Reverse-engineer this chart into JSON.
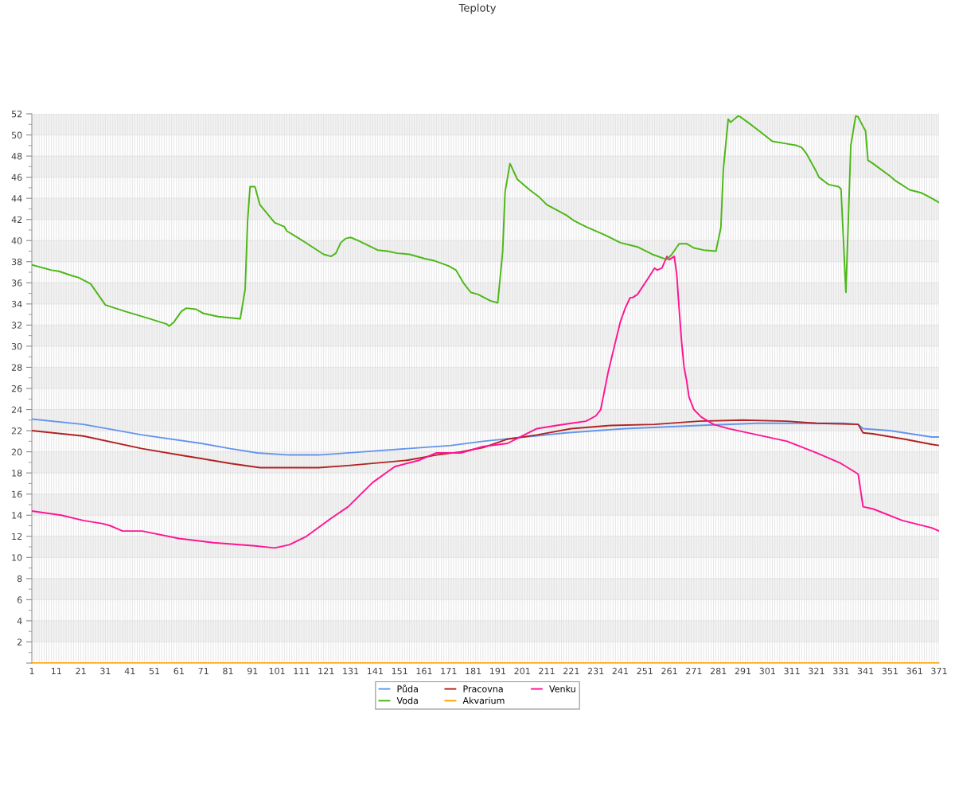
{
  "chart_data": {
    "type": "line",
    "title": "Teploty",
    "xlim": [
      1,
      371
    ],
    "xticks": [
      1,
      {
        "value": 2,
        "label": null
      },
      {
        "value": 3,
        "label": null
      },
      {
        "value": 4,
        "label": null
      },
      {
        "value": 5,
        "label": null
      },
      {
        "value": 6,
        "label": null
      },
      {
        "value": 7,
        "label": null
      },
      {
        "value": 8,
        "label": null
      },
      {
        "value": 9,
        "label": null
      },
      {
        "value": 10,
        "label": null
      },
      11,
      {
        "value": 12,
        "label": null
      },
      {
        "value": 13,
        "label": null
      },
      {
        "value": 14,
        "label": null
      },
      {
        "value": 15,
        "label": null
      },
      {
        "value": 16,
        "label": null
      },
      {
        "value": 17,
        "label": null
      },
      {
        "value": 18,
        "label": null
      },
      {
        "value": 19,
        "label": null
      },
      {
        "value": 20,
        "label": null
      },
      21,
      {
        "value": 22,
        "label": null
      },
      {
        "value": 23,
        "label": null
      },
      {
        "value": 24,
        "label": null
      },
      {
        "value": 25,
        "label": null
      },
      {
        "value": 26,
        "label": null
      },
      {
        "value": 27,
        "label": null
      },
      {
        "value": 28,
        "label": null
      },
      {
        "value": 29,
        "label": null
      },
      {
        "value": 30,
        "label": null
      },
      31,
      {
        "value": 32,
        "label": null
      },
      {
        "value": 33,
        "label": null
      },
      {
        "value": 34,
        "label": null
      },
      {
        "value": 35,
        "label": null
      },
      {
        "value": 36,
        "label": null
      },
      {
        "value": 37,
        "label": null
      },
      {
        "value": 38,
        "label": null
      },
      {
        "value": 39,
        "label": null
      },
      {
        "value": 40,
        "label": null
      },
      41,
      {
        "value": 42,
        "label": null
      },
      {
        "value": 43,
        "label": null
      },
      {
        "value": 44,
        "label": null
      },
      {
        "value": 45,
        "label": null
      },
      {
        "value": 46,
        "label": null
      },
      {
        "value": 47,
        "label": null
      },
      {
        "value": 48,
        "label": null
      },
      {
        "value": 49,
        "label": null
      },
      {
        "value": 50,
        "label": null
      },
      51,
      {
        "value": 52,
        "label": null
      },
      {
        "value": 53,
        "label": null
      },
      {
        "value": 54,
        "label": null
      },
      {
        "value": 55,
        "label": null
      },
      {
        "value": 56,
        "label": null
      },
      {
        "value": 57,
        "label": null
      },
      {
        "value": 58,
        "label": null
      },
      {
        "value": 59,
        "label": null
      },
      {
        "value": 60,
        "label": null
      },
      61,
      {
        "value": 62,
        "label": null
      },
      {
        "value": 63,
        "label": null
      },
      {
        "value": 64,
        "label": null
      },
      {
        "value": 65,
        "label": null
      },
      {
        "value": 66,
        "label": null
      },
      {
        "value": 67,
        "label": null
      },
      {
        "value": 68,
        "label": null
      },
      {
        "value": 69,
        "label": null
      },
      {
        "value": 70,
        "label": null
      },
      71,
      {
        "value": 72,
        "label": null
      },
      {
        "value": 73,
        "label": null
      },
      {
        "value": 74,
        "label": null
      },
      {
        "value": 75,
        "label": null
      },
      {
        "value": 76,
        "label": null
      },
      {
        "value": 77,
        "label": null
      },
      {
        "value": 78,
        "label": null
      },
      {
        "value": 79,
        "label": null
      },
      {
        "value": 80,
        "label": null
      },
      81,
      {
        "value": 82,
        "label": null
      },
      {
        "value": 83,
        "label": null
      },
      {
        "value": 84,
        "label": null
      },
      {
        "value": 85,
        "label": null
      },
      {
        "value": 86,
        "label": null
      },
      {
        "value": 87,
        "label": null
      },
      {
        "value": 88,
        "label": null
      },
      {
        "value": 89,
        "label": null
      },
      {
        "value": 90,
        "label": null
      },
      91,
      {
        "value": 92,
        "label": null
      },
      {
        "value": 93,
        "label": null
      },
      {
        "value": 94,
        "label": null
      },
      {
        "value": 95,
        "label": null
      },
      {
        "value": 96,
        "label": null
      },
      {
        "value": 97,
        "label": null
      },
      {
        "value": 98,
        "label": null
      },
      {
        "value": 99,
        "label": null
      },
      {
        "value": 100,
        "label": null
      },
      101,
      {
        "value": 102,
        "label": null
      },
      {
        "value": 103,
        "label": null
      },
      {
        "value": 104,
        "label": null
      },
      {
        "value": 105,
        "label": null
      },
      {
        "value": 106,
        "label": null
      },
      {
        "value": 107,
        "label": null
      },
      {
        "value": 108,
        "label": null
      },
      {
        "value": 109,
        "label": null
      },
      {
        "value": 110,
        "label": null
      },
      111,
      {
        "value": 112,
        "label": null
      },
      {
        "value": 113,
        "label": null
      },
      {
        "value": 114,
        "label": null
      },
      {
        "value": 115,
        "label": null
      },
      {
        "value": 116,
        "label": null
      },
      {
        "value": 117,
        "label": null
      },
      {
        "value": 118,
        "label": null
      },
      {
        "value": 119,
        "label": null
      },
      {
        "value": 120,
        "label": null
      },
      121,
      {
        "value": 122,
        "label": null
      },
      {
        "value": 123,
        "label": null
      },
      {
        "value": 124,
        "label": null
      },
      {
        "value": 125,
        "label": null
      },
      {
        "value": 126,
        "label": null
      },
      {
        "value": 127,
        "label": null
      },
      {
        "value": 128,
        "label": null
      },
      {
        "value": 129,
        "label": null
      },
      {
        "value": 130,
        "label": null
      },
      131,
      {
        "value": 132,
        "label": null
      },
      {
        "value": 133,
        "label": null
      },
      {
        "value": 134,
        "label": null
      },
      {
        "value": 135,
        "label": null
      },
      {
        "value": 136,
        "label": null
      },
      {
        "value": 137,
        "label": null
      },
      {
        "value": 138,
        "label": null
      },
      {
        "value": 139,
        "label": null
      },
      {
        "value": 140,
        "label": null
      },
      141,
      {
        "value": 142,
        "label": null
      },
      {
        "value": 143,
        "label": null
      },
      {
        "value": 144,
        "label": null
      },
      {
        "value": 145,
        "label": null
      },
      {
        "value": 146,
        "label": null
      },
      {
        "value": 147,
        "label": null
      },
      {
        "value": 148,
        "label": null
      },
      {
        "value": 149,
        "label": null
      },
      {
        "value": 150,
        "label": null
      },
      151,
      {
        "value": 152,
        "label": null
      },
      {
        "value": 153,
        "label": null
      },
      {
        "value": 154,
        "label": null
      },
      {
        "value": 155,
        "label": null
      },
      {
        "value": 156,
        "label": null
      },
      {
        "value": 157,
        "label": null
      },
      {
        "value": 158,
        "label": null
      },
      {
        "value": 159,
        "label": null
      },
      {
        "value": 160,
        "label": null
      },
      161,
      {
        "value": 162,
        "label": null
      },
      {
        "value": 163,
        "label": null
      },
      {
        "value": 164,
        "label": null
      },
      {
        "value": 165,
        "label": null
      },
      {
        "value": 166,
        "label": null
      },
      {
        "value": 167,
        "label": null
      },
      {
        "value": 168,
        "label": null
      },
      {
        "value": 169,
        "label": null
      },
      {
        "value": 170,
        "label": null
      },
      171,
      {
        "value": 172,
        "label": null
      },
      {
        "value": 173,
        "label": null
      },
      {
        "value": 174,
        "label": null
      },
      {
        "value": 175,
        "label": null
      },
      {
        "value": 176,
        "label": null
      },
      {
        "value": 177,
        "label": null
      },
      {
        "value": 178,
        "label": null
      },
      {
        "value": 179,
        "label": null
      },
      {
        "value": 180,
        "label": null
      },
      181,
      {
        "value": 182,
        "label": null
      },
      {
        "value": 183,
        "label": null
      },
      {
        "value": 184,
        "label": null
      },
      {
        "value": 185,
        "label": null
      },
      {
        "value": 186,
        "label": null
      },
      {
        "value": 187,
        "label": null
      },
      {
        "value": 188,
        "label": null
      },
      {
        "value": 189,
        "label": null
      },
      {
        "value": 190,
        "label": null
      },
      191,
      {
        "value": 192,
        "label": null
      },
      {
        "value": 193,
        "label": null
      },
      {
        "value": 194,
        "label": null
      },
      {
        "value": 195,
        "label": null
      },
      {
        "value": 196,
        "label": null
      },
      {
        "value": 197,
        "label": null
      },
      {
        "value": 198,
        "label": null
      },
      {
        "value": 199,
        "label": null
      },
      {
        "value": 200,
        "label": null
      },
      201,
      {
        "value": 202,
        "label": null
      },
      {
        "value": 203,
        "label": null
      },
      {
        "value": 204,
        "label": null
      },
      {
        "value": 205,
        "label": null
      },
      {
        "value": 206,
        "label": null
      },
      {
        "value": 207,
        "label": null
      },
      {
        "value": 208,
        "label": null
      },
      {
        "value": 209,
        "label": null
      },
      {
        "value": 210,
        "label": null
      },
      211,
      {
        "value": 212,
        "label": null
      },
      {
        "value": 213,
        "label": null
      },
      {
        "value": 214,
        "label": null
      },
      {
        "value": 215,
        "label": null
      },
      {
        "value": 216,
        "label": null
      },
      {
        "value": 217,
        "label": null
      },
      {
        "value": 218,
        "label": null
      },
      {
        "value": 219,
        "label": null
      },
      {
        "value": 220,
        "label": null
      },
      221,
      {
        "value": 222,
        "label": null
      },
      {
        "value": 223,
        "label": null
      },
      {
        "value": 224,
        "label": null
      },
      {
        "value": 225,
        "label": null
      },
      {
        "value": 226,
        "label": null
      },
      {
        "value": 227,
        "label": null
      },
      {
        "value": 228,
        "label": null
      },
      {
        "value": 229,
        "label": null
      },
      {
        "value": 230,
        "label": null
      },
      231,
      {
        "value": 232,
        "label": null
      },
      {
        "value": 233,
        "label": null
      },
      {
        "value": 234,
        "label": null
      },
      {
        "value": 235,
        "label": null
      },
      {
        "value": 236,
        "label": null
      },
      {
        "value": 237,
        "label": null
      },
      {
        "value": 238,
        "label": null
      },
      {
        "value": 239,
        "label": null
      },
      {
        "value": 240,
        "label": null
      },
      241,
      {
        "value": 242,
        "label": null
      },
      {
        "value": 243,
        "label": null
      },
      {
        "value": 244,
        "label": null
      },
      {
        "value": 245,
        "label": null
      },
      {
        "value": 246,
        "label": null
      },
      {
        "value": 247,
        "label": null
      },
      {
        "value": 248,
        "label": null
      },
      {
        "value": 249,
        "label": null
      },
      {
        "value": 250,
        "label": null
      },
      251,
      {
        "value": 252,
        "label": null
      },
      {
        "value": 253,
        "label": null
      },
      {
        "value": 254,
        "label": null
      },
      {
        "value": 255,
        "label": null
      },
      {
        "value": 256,
        "label": null
      },
      {
        "value": 257,
        "label": null
      },
      {
        "value": 258,
        "label": null
      },
      {
        "value": 259,
        "label": null
      },
      {
        "value": 260,
        "label": null
      },
      261,
      {
        "value": 262,
        "label": null
      },
      {
        "value": 263,
        "label": null
      },
      {
        "value": 264,
        "label": null
      },
      {
        "value": 265,
        "label": null
      },
      {
        "value": 266,
        "label": null
      },
      {
        "value": 267,
        "label": null
      },
      {
        "value": 268,
        "label": null
      },
      {
        "value": 269,
        "label": null
      },
      {
        "value": 270,
        "label": null
      },
      271,
      {
        "value": 272,
        "label": null
      },
      {
        "value": 273,
        "label": null
      },
      {
        "value": 274,
        "label": null
      },
      {
        "value": 275,
        "label": null
      },
      {
        "value": 276,
        "label": null
      },
      {
        "value": 277,
        "label": null
      },
      {
        "value": 278,
        "label": null
      },
      {
        "value": 279,
        "label": null
      },
      {
        "value": 280,
        "label": null
      },
      281,
      {
        "value": 282,
        "label": null
      },
      {
        "value": 283,
        "label": null
      },
      {
        "value": 284,
        "label": null
      },
      {
        "value": 285,
        "label": null
      },
      {
        "value": 286,
        "label": null
      },
      {
        "value": 287,
        "label": null
      },
      {
        "value": 288,
        "label": null
      },
      {
        "value": 289,
        "label": null
      },
      {
        "value": 290,
        "label": null
      },
      291,
      {
        "value": 292,
        "label": null
      },
      {
        "value": 293,
        "label": null
      },
      {
        "value": 294,
        "label": null
      },
      {
        "value": 295,
        "label": null
      },
      {
        "value": 296,
        "label": null
      },
      {
        "value": 297,
        "label": null
      },
      {
        "value": 298,
        "label": null
      },
      {
        "value": 299,
        "label": null
      },
      {
        "value": 300,
        "label": null
      },
      301,
      {
        "value": 302,
        "label": null
      },
      {
        "value": 303,
        "label": null
      },
      {
        "value": 304,
        "label": null
      },
      {
        "value": 305,
        "label": null
      },
      {
        "value": 306,
        "label": null
      },
      {
        "value": 307,
        "label": null
      },
      {
        "value": 308,
        "label": null
      },
      {
        "value": 309,
        "label": null
      },
      {
        "value": 310,
        "label": null
      },
      311,
      {
        "value": 312,
        "label": null
      },
      {
        "value": 313,
        "label": null
      },
      {
        "value": 314,
        "label": null
      },
      {
        "value": 315,
        "label": null
      },
      {
        "value": 316,
        "label": null
      },
      {
        "value": 317,
        "label": null
      },
      {
        "value": 318,
        "label": null
      },
      {
        "value": 319,
        "label": null
      },
      {
        "value": 320,
        "label": null
      },
      321,
      {
        "value": 322,
        "label": null
      },
      {
        "value": 323,
        "label": null
      },
      {
        "value": 324,
        "label": null
      },
      {
        "value": 325,
        "label": null
      },
      {
        "value": 326,
        "label": null
      },
      {
        "value": 327,
        "label": null
      },
      {
        "value": 328,
        "label": null
      },
      {
        "value": 329,
        "label": null
      },
      {
        "value": 330,
        "label": null
      },
      331,
      {
        "value": 332,
        "label": null
      },
      {
        "value": 333,
        "label": null
      },
      {
        "value": 334,
        "label": null
      },
      {
        "value": 335,
        "label": null
      },
      {
        "value": 336,
        "label": null
      },
      {
        "value": 337,
        "label": null
      },
      {
        "value": 338,
        "label": null
      },
      {
        "value": 339,
        "label": null
      },
      {
        "value": 340,
        "label": null
      },
      341,
      {
        "value": 342,
        "label": null
      },
      {
        "value": 343,
        "label": null
      },
      {
        "value": 344,
        "label": null
      },
      {
        "value": 345,
        "label": null
      },
      {
        "value": 346,
        "label": null
      },
      {
        "value": 347,
        "label": null
      },
      {
        "value": 348,
        "label": null
      },
      {
        "value": 349,
        "label": null
      },
      {
        "value": 350,
        "label": null
      },
      351,
      {
        "value": 352,
        "label": null
      },
      {
        "value": 353,
        "label": null
      },
      {
        "value": 354,
        "label": null
      },
      {
        "value": 355,
        "label": null
      },
      {
        "value": 356,
        "label": null
      },
      {
        "value": 357,
        "label": null
      },
      {
        "value": 358,
        "label": null
      },
      {
        "value": 359,
        "label": null
      },
      {
        "value": 360,
        "label": null
      },
      361,
      {
        "value": 362,
        "label": null
      },
      {
        "value": 363,
        "label": null
      },
      {
        "value": 364,
        "label": null
      },
      {
        "value": 365,
        "label": null
      },
      {
        "value": 366,
        "label": null
      },
      {
        "value": 367,
        "label": null
      },
      {
        "value": 368,
        "label": null
      },
      {
        "value": 369,
        "label": null
      },
      {
        "value": 370,
        "label": null
      },
      371
    ],
    "ylim": [
      0,
      52
    ],
    "yticks": [
      {
        "value": 0,
        "label": null
      },
      2,
      4,
      6,
      8,
      10,
      12,
      14,
      16,
      18,
      20,
      22,
      24,
      26,
      28,
      30,
      32,
      34,
      36,
      38,
      40,
      42,
      44,
      46,
      48,
      50,
      52
    ],
    "grid": true,
    "legend": "bottom",
    "bands": [
      {
        "axis": "y",
        "from": 2,
        "to": 4,
        "color": "#f2f2f2"
      },
      {
        "axis": "y",
        "from": 6,
        "to": 8,
        "color": "#f2f2f2"
      },
      {
        "axis": "y",
        "from": 10,
        "to": 12,
        "color": "#f2f2f2"
      },
      {
        "axis": "y",
        "from": 14,
        "to": 16,
        "color": "#f2f2f2"
      },
      {
        "axis": "y",
        "from": 18,
        "to": 20,
        "color": "#f2f2f2"
      },
      {
        "axis": "y",
        "from": 22,
        "to": 24,
        "color": "#f2f2f2"
      },
      {
        "axis": "y",
        "from": 26,
        "to": 28,
        "color": "#f2f2f2"
      },
      {
        "axis": "y",
        "from": 30,
        "to": 32,
        "color": "#f2f2f2"
      },
      {
        "axis": "y",
        "from": 34,
        "to": 36,
        "color": "#f2f2f2"
      },
      {
        "axis": "y",
        "from": 38,
        "to": 40,
        "color": "#f2f2f2"
      },
      {
        "axis": "y",
        "from": 42,
        "to": 44,
        "color": "#f2f2f2"
      },
      {
        "axis": "y",
        "from": 46,
        "to": 48,
        "color": "#f2f2f2"
      },
      {
        "axis": "y",
        "from": 50,
        "to": 52,
        "color": "#f2f2f2"
      }
    ],
    "series": [
      {
        "name": "Půda",
        "color": "#6495ed",
        "x": [
          1,
          22,
          46,
          70,
          82,
          93,
          106,
          118,
          136,
          154,
          172,
          185,
          219,
          243,
          273,
          297,
          332,
          338,
          340,
          351,
          368,
          371
        ],
        "values": [
          23.1,
          22.6,
          21.6,
          20.8,
          20.3,
          19.9,
          19.7,
          19.7,
          20.0,
          20.3,
          20.6,
          21.0,
          21.8,
          22.2,
          22.5,
          22.7,
          22.7,
          22.6,
          22.2,
          22.0,
          21.4,
          21.4
        ]
      },
      {
        "name": "Pracovna",
        "color": "#b22222",
        "x": [
          1,
          22,
          46,
          64,
          82,
          94,
          118,
          130,
          154,
          166,
          176,
          185,
          195,
          207,
          221,
          237,
          255,
          273,
          291,
          309,
          321,
          338,
          340,
          344,
          357,
          368,
          371
        ],
        "values": [
          22.0,
          21.5,
          20.3,
          19.6,
          18.9,
          18.5,
          18.5,
          18.7,
          19.2,
          19.7,
          20.0,
          20.4,
          21.2,
          21.6,
          22.2,
          22.5,
          22.6,
          22.9,
          23.0,
          22.9,
          22.7,
          22.6,
          21.8,
          21.7,
          21.2,
          20.7,
          20.6
        ]
      },
      {
        "name": "Venku",
        "color": "#ff1493",
        "x": [
          1,
          13,
          22,
          30,
          33,
          35,
          38,
          46,
          61,
          75,
          92,
          100,
          106,
          113,
          123,
          130,
          140,
          149,
          159,
          166,
          176,
          185,
          195,
          201,
          207,
          215,
          221,
          227,
          231,
          233,
          236,
          239,
          241,
          243,
          245,
          246,
          248,
          252,
          255,
          256,
          258,
          260,
          261,
          263,
          264,
          265,
          266,
          267,
          268,
          269,
          271,
          274,
          279,
          285,
          297,
          309,
          321,
          331,
          338,
          340,
          344,
          356,
          368,
          371
        ],
        "values": [
          14.4,
          14.0,
          13.5,
          13.2,
          13.0,
          12.8,
          12.5,
          12.5,
          11.8,
          11.4,
          11.1,
          10.9,
          11.2,
          12.0,
          13.7,
          14.8,
          17.1,
          18.6,
          19.2,
          19.9,
          19.9,
          20.5,
          20.8,
          21.5,
          22.2,
          22.5,
          22.7,
          22.9,
          23.4,
          24.0,
          27.5,
          30.4,
          32.3,
          33.6,
          34.6,
          34.6,
          34.9,
          36.3,
          37.4,
          37.2,
          37.4,
          38.5,
          38.2,
          38.5,
          36.8,
          33.5,
          30.4,
          28.0,
          26.8,
          25.2,
          24.0,
          23.3,
          22.6,
          22.2,
          21.6,
          21.0,
          19.9,
          18.9,
          17.9,
          14.8,
          14.6,
          13.5,
          12.8,
          12.5
        ]
      },
      {
        "name": "Voda",
        "color": "#4cb716",
        "x": [
          1,
          9,
          12,
          17,
          20,
          25,
          28,
          31,
          39,
          49,
          56,
          57,
          59,
          62,
          64,
          68,
          71,
          77,
          86,
          88,
          89,
          90,
          92,
          94,
          100,
          104,
          105,
          110,
          112,
          118,
          120,
          123,
          125,
          127,
          129,
          131,
          134,
          142,
          146,
          150,
          155,
          161,
          165,
          171,
          174,
          177,
          180,
          183,
          188,
          191,
          193,
          194,
          196,
          199,
          204,
          208,
          211,
          219,
          222,
          227,
          235,
          241,
          248,
          254,
          260,
          262,
          265,
          268,
          271,
          275,
          280,
          282,
          283,
          285,
          286,
          289,
          290,
          293,
          297,
          303,
          308,
          313,
          315,
          317,
          321,
          322,
          326,
          330,
          331,
          333,
          335,
          337,
          338,
          340,
          341,
          342,
          344,
          351,
          353,
          359,
          364,
          368,
          371
        ],
        "values": [
          37.7,
          37.2,
          37.1,
          36.7,
          36.5,
          35.9,
          34.9,
          33.9,
          33.3,
          32.6,
          32.1,
          31.9,
          32.3,
          33.3,
          33.6,
          33.5,
          33.1,
          32.8,
          32.6,
          35.4,
          41.9,
          45.1,
          45.1,
          43.4,
          41.7,
          41.3,
          40.9,
          40.2,
          39.9,
          39.0,
          38.7,
          38.5,
          38.8,
          39.8,
          40.2,
          40.3,
          40.0,
          39.1,
          39.0,
          38.8,
          38.7,
          38.3,
          38.1,
          37.6,
          37.2,
          36.0,
          35.1,
          34.9,
          34.3,
          34.1,
          38.9,
          44.6,
          47.3,
          45.8,
          44.8,
          44.1,
          43.4,
          42.4,
          41.9,
          41.3,
          40.5,
          39.8,
          39.4,
          38.7,
          38.2,
          38.7,
          39.7,
          39.7,
          39.3,
          39.1,
          39.0,
          41.2,
          46.7,
          51.5,
          51.2,
          51.8,
          51.7,
          51.2,
          50.5,
          49.4,
          49.2,
          49.0,
          48.8,
          48.2,
          46.5,
          46.0,
          45.3,
          45.1,
          44.9,
          35.1,
          49.0,
          51.8,
          51.7,
          50.8,
          50.4,
          47.6,
          47.3,
          46.1,
          45.7,
          44.8,
          44.5,
          44.0,
          43.6
        ]
      },
      {
        "name": "Akvarium",
        "color": "#ffa500",
        "x": [
          1,
          371
        ],
        "values": [
          0,
          0
        ]
      }
    ]
  }
}
